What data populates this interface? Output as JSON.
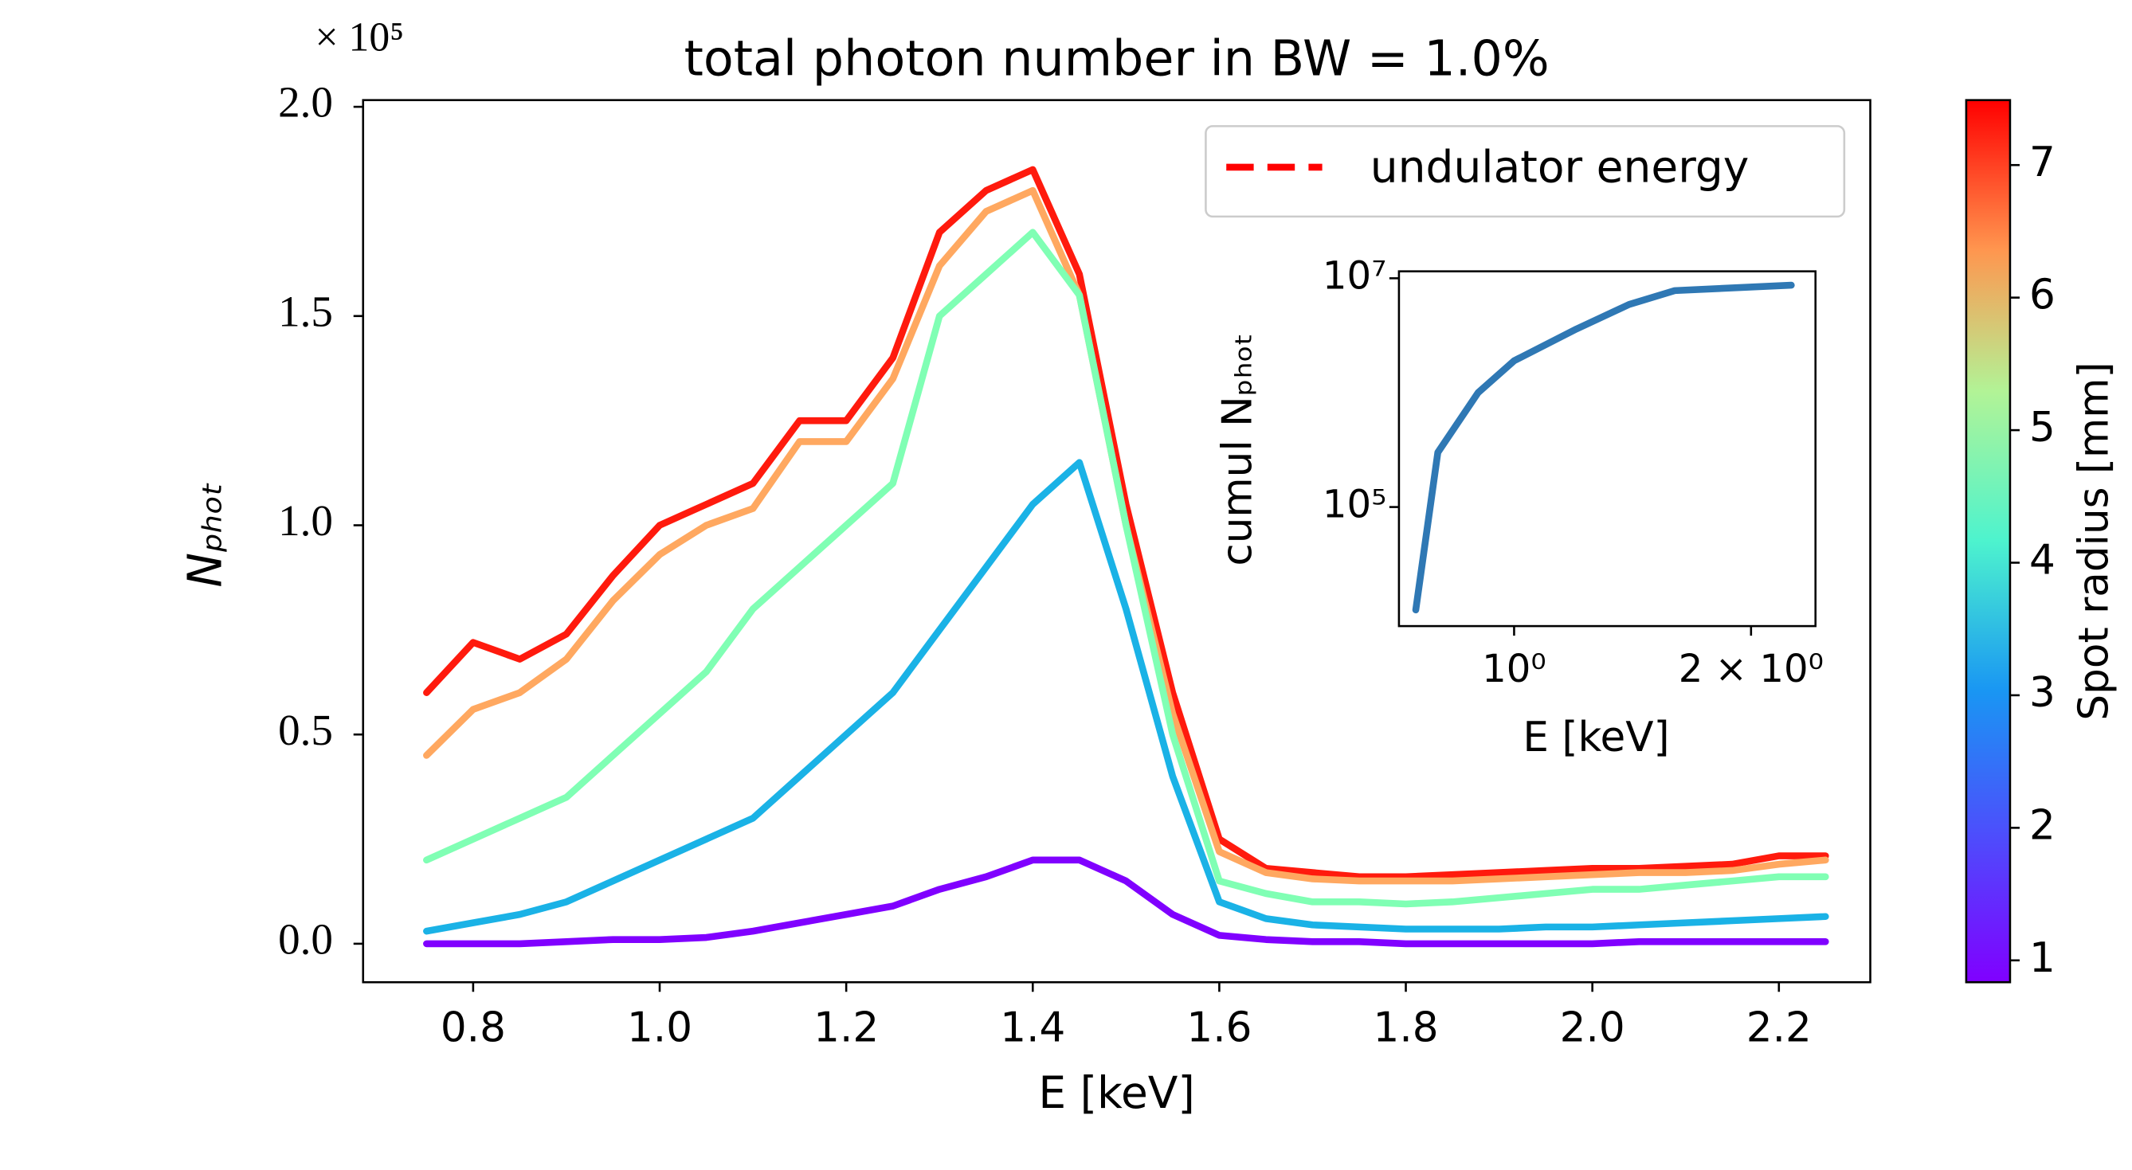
{
  "chart_data": [
    {
      "type": "line",
      "title": "total photon number in BW = 1.0%",
      "y_multiplier": "× 10⁵",
      "xlabel": "E [keV]",
      "ylabel": "Nₚₕₒₜ",
      "x": [
        0.75,
        0.8,
        0.85,
        0.9,
        0.95,
        1.0,
        1.05,
        1.1,
        1.15,
        1.2,
        1.25,
        1.3,
        1.35,
        1.4,
        1.45,
        1.5,
        1.55,
        1.6,
        1.65,
        1.7,
        1.75,
        1.8,
        1.85,
        1.9,
        1.95,
        2.0,
        2.05,
        2.1,
        2.15,
        2.2,
        2.25
      ],
      "series": [
        {
          "color": "#ff1a0d",
          "values": [
            0.6,
            0.72,
            0.68,
            0.74,
            0.88,
            1.0,
            1.05,
            1.1,
            1.25,
            1.25,
            1.4,
            1.7,
            1.8,
            1.85,
            1.6,
            1.05,
            0.6,
            0.25,
            0.18,
            0.17,
            0.16,
            0.16,
            0.165,
            0.17,
            0.175,
            0.18,
            0.18,
            0.185,
            0.19,
            0.21,
            0.21
          ]
        },
        {
          "color": "#ffa860",
          "values": [
            0.45,
            0.56,
            0.6,
            0.68,
            0.82,
            0.93,
            1.0,
            1.04,
            1.2,
            1.2,
            1.35,
            1.62,
            1.75,
            1.8,
            1.55,
            1.0,
            0.55,
            0.22,
            0.17,
            0.155,
            0.15,
            0.15,
            0.15,
            0.155,
            0.16,
            0.165,
            0.17,
            0.17,
            0.175,
            0.19,
            0.2
          ]
        },
        {
          "color": "#80ffb4",
          "values": [
            0.2,
            0.25,
            0.3,
            0.35,
            0.45,
            0.55,
            0.65,
            0.8,
            0.9,
            1.0,
            1.1,
            1.5,
            1.6,
            1.7,
            1.55,
            1.0,
            0.5,
            0.15,
            0.12,
            0.1,
            0.1,
            0.095,
            0.1,
            0.11,
            0.12,
            0.13,
            0.13,
            0.14,
            0.15,
            0.16,
            0.16
          ]
        },
        {
          "color": "#1ab2e6",
          "values": [
            0.03,
            0.05,
            0.07,
            0.1,
            0.15,
            0.2,
            0.25,
            0.3,
            0.4,
            0.5,
            0.6,
            0.75,
            0.9,
            1.05,
            1.15,
            0.8,
            0.4,
            0.1,
            0.06,
            0.045,
            0.04,
            0.035,
            0.035,
            0.035,
            0.04,
            0.04,
            0.045,
            0.05,
            0.055,
            0.06,
            0.065
          ]
        },
        {
          "color": "#8000ff",
          "values": [
            0,
            0,
            0,
            0.005,
            0.01,
            0.01,
            0.015,
            0.03,
            0.05,
            0.07,
            0.09,
            0.13,
            0.16,
            0.2,
            0.2,
            0.15,
            0.07,
            0.02,
            0.01,
            0.005,
            0.005,
            0,
            0,
            0,
            0,
            0,
            0.005,
            0.005,
            0.005,
            0.005,
            0.005
          ]
        }
      ],
      "xlim": [
        0.682,
        2.298
      ],
      "xticks": [
        0.8,
        {
          "value": 1,
          "label": "1.0"
        },
        1.2,
        1.4,
        1.6,
        1.8,
        {
          "value": 2,
          "label": "2.0"
        },
        2.2
      ],
      "ylim": [
        -0.092,
        2.016
      ],
      "yticks": [
        {
          "value": 0,
          "label": "0.0"
        },
        0.5,
        {
          "value": 1,
          "label": "1.0"
        },
        1.5,
        {
          "value": 2,
          "label": "2.0"
        }
      ],
      "legend": {
        "label": "undulator energy",
        "color": "#ff0000",
        "style": "dashed",
        "position": "upper right"
      },
      "colorbar": {
        "label": "Spot radius [mm]",
        "colormap": "rainbow",
        "clim": [
          0.835,
          7.49
        ],
        "ticks": [
          1,
          2,
          3,
          4,
          5,
          6,
          7
        ]
      }
    },
    {
      "type": "line",
      "log_x": true,
      "log_y": true,
      "xlabel": "E [keV]",
      "ylabel": "cumul Nₚₕₒₜ",
      "x": [
        0.75,
        0.8,
        0.9,
        1.0,
        1.2,
        1.4,
        1.6,
        2.25
      ],
      "series": [
        {
          "color": "#2f78b4",
          "values": [
            12600,
            300000,
            1000000,
            1900000,
            3600000,
            5900000,
            7800000,
            8700000
          ]
        }
      ],
      "xlim": [
        0.714,
        2.415
      ],
      "xticks": [
        {
          "value": 1,
          "label": "10⁰"
        },
        {
          "value": 2,
          "label": "2 × 10⁰"
        }
      ],
      "ylim": [
        9100,
        11500000
      ],
      "yticks": [
        {
          "value": 100000,
          "label": "10⁵"
        },
        {
          "value": 10000000,
          "label": "10⁷"
        }
      ]
    }
  ]
}
